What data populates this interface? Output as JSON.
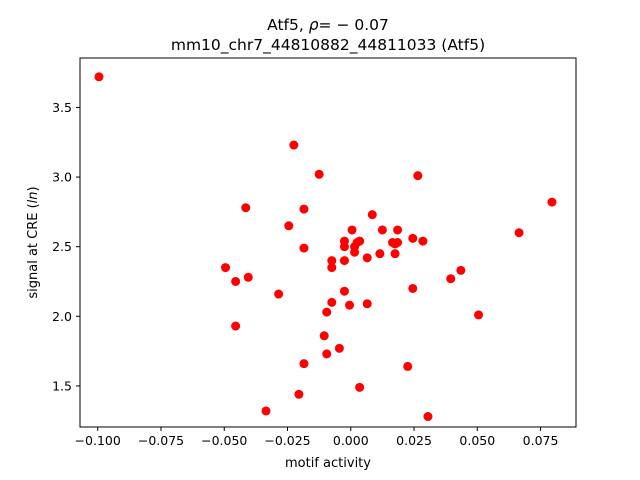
{
  "chart_data": {
    "type": "scatter",
    "title_line1_prefix": "Atf5, ",
    "title_line1_rho": "ρ",
    "title_line1_suffix": "= − 0.07",
    "title_line2": "mm10_chr7_44810882_44811033 (Atf5)",
    "xlabel": "motif activity",
    "ylabel": "signal at CRE (ln)",
    "ylabel_prefix": "signal at CRE (",
    "ylabel_italic": "ln",
    "ylabel_suffix": ")",
    "xlim": [
      -0.107,
      0.089
    ],
    "ylim": [
      1.205,
      3.855
    ],
    "xticks": [
      -0.1,
      -0.075,
      -0.05,
      -0.025,
      0.0,
      0.025,
      0.05,
      0.075
    ],
    "xtick_labels": [
      "−0.100",
      "−0.075",
      "−0.050",
      "−0.025",
      "0.000",
      "0.025",
      "0.050",
      "0.075"
    ],
    "yticks": [
      1.5,
      2.0,
      2.5,
      3.0,
      3.5
    ],
    "ytick_labels": [
      "1.5",
      "2.0",
      "2.5",
      "3.0",
      "3.5"
    ],
    "marker_color": "#ff0000",
    "grid": false,
    "points": [
      {
        "x": -0.0995,
        "y": 3.72
      },
      {
        "x": -0.0225,
        "y": 3.23
      },
      {
        "x": -0.0125,
        "y": 3.02
      },
      {
        "x": 0.0265,
        "y": 3.01
      },
      {
        "x": 0.0795,
        "y": 2.82
      },
      {
        "x": -0.0415,
        "y": 2.78
      },
      {
        "x": -0.0185,
        "y": 2.77
      },
      {
        "x": 0.0085,
        "y": 2.73
      },
      {
        "x": -0.0245,
        "y": 2.65
      },
      {
        "x": 0.0005,
        "y": 2.62
      },
      {
        "x": 0.0125,
        "y": 2.62
      },
      {
        "x": 0.0185,
        "y": 2.62
      },
      {
        "x": 0.0665,
        "y": 2.6
      },
      {
        "x": 0.0245,
        "y": 2.56
      },
      {
        "x": 0.0285,
        "y": 2.54
      },
      {
        "x": -0.0025,
        "y": 2.54
      },
      {
        "x": 0.0025,
        "y": 2.53
      },
      {
        "x": 0.0035,
        "y": 2.54
      },
      {
        "x": 0.0165,
        "y": 2.53
      },
      {
        "x": 0.0175,
        "y": 2.52
      },
      {
        "x": 0.0185,
        "y": 2.53
      },
      {
        "x": -0.0025,
        "y": 2.5
      },
      {
        "x": 0.0015,
        "y": 2.5
      },
      {
        "x": -0.0185,
        "y": 2.49
      },
      {
        "x": 0.0015,
        "y": 2.46
      },
      {
        "x": 0.0115,
        "y": 2.45
      },
      {
        "x": 0.0175,
        "y": 2.45
      },
      {
        "x": 0.0065,
        "y": 2.42
      },
      {
        "x": -0.0025,
        "y": 2.4
      },
      {
        "x": -0.0075,
        "y": 2.4
      },
      {
        "x": -0.0495,
        "y": 2.35
      },
      {
        "x": -0.0075,
        "y": 2.35
      },
      {
        "x": 0.0435,
        "y": 2.33
      },
      {
        "x": -0.0405,
        "y": 2.28
      },
      {
        "x": 0.0395,
        "y": 2.27
      },
      {
        "x": -0.0455,
        "y": 2.25
      },
      {
        "x": 0.0245,
        "y": 2.2
      },
      {
        "x": -0.0025,
        "y": 2.18
      },
      {
        "x": -0.0285,
        "y": 2.16
      },
      {
        "x": -0.0075,
        "y": 2.1
      },
      {
        "x": 0.0065,
        "y": 2.09
      },
      {
        "x": -0.0005,
        "y": 2.08
      },
      {
        "x": -0.0095,
        "y": 2.03
      },
      {
        "x": 0.0505,
        "y": 2.01
      },
      {
        "x": -0.0455,
        "y": 1.93
      },
      {
        "x": -0.0105,
        "y": 1.86
      },
      {
        "x": -0.0045,
        "y": 1.77
      },
      {
        "x": -0.0095,
        "y": 1.73
      },
      {
        "x": -0.0185,
        "y": 1.66
      },
      {
        "x": 0.0225,
        "y": 1.64
      },
      {
        "x": 0.0035,
        "y": 1.49
      },
      {
        "x": -0.0205,
        "y": 1.44
      },
      {
        "x": -0.0335,
        "y": 1.32
      },
      {
        "x": 0.0305,
        "y": 1.28
      }
    ]
  }
}
